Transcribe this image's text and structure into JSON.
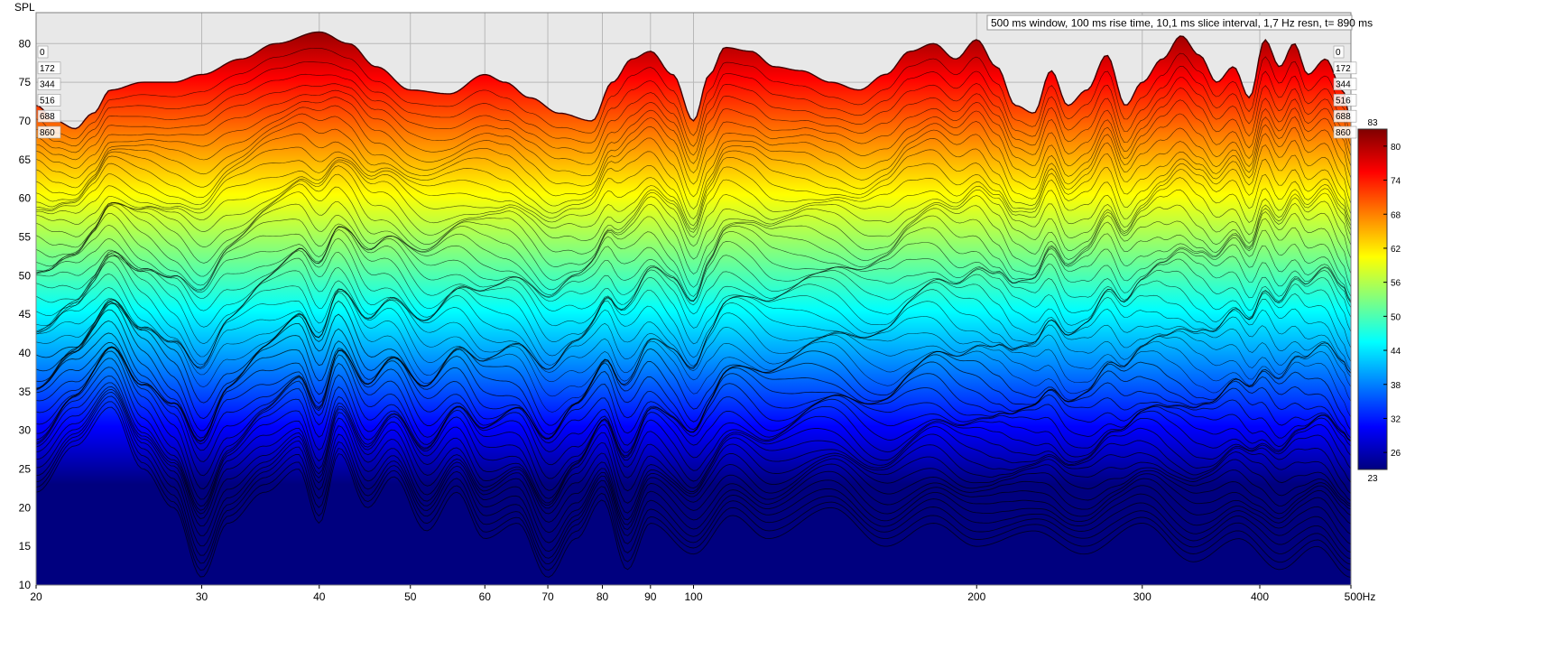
{
  "chart_data": {
    "type": "waterfall",
    "title": "",
    "ylabel": "SPL",
    "xunit": "Hz",
    "info": "500 ms window, 100 ms rise time, 10,1 ms slice interval, 1,7 Hz resn, t= 890 ms",
    "xlim": [
      20,
      500
    ],
    "ylim": [
      10,
      84
    ],
    "x_scale": "log",
    "grid": true,
    "x_ticks": [
      20,
      30,
      40,
      50,
      60,
      70,
      80,
      90,
      100,
      200,
      300,
      400,
      500
    ],
    "x_tick_labels": [
      "20",
      "30",
      "40",
      "50",
      "60",
      "70",
      "80",
      "90",
      "100",
      "200",
      "300",
      "400",
      "500Hz"
    ],
    "y_ticks": [
      10,
      15,
      20,
      25,
      30,
      35,
      40,
      45,
      50,
      55,
      60,
      65,
      70,
      75,
      80
    ],
    "time_slice_labels": [
      "0",
      "172",
      "344",
      "516",
      "688",
      "860"
    ],
    "colorbar": {
      "min": 23,
      "max": 83,
      "ticks": [
        26,
        32,
        38,
        44,
        50,
        56,
        62,
        68,
        74,
        80
      ],
      "stops": [
        "#00007f",
        "#0000ff",
        "#0080ff",
        "#00ffff",
        "#80ff80",
        "#ffff00",
        "#ff8000",
        "#ff0000",
        "#7f0000"
      ]
    },
    "series": [
      {
        "slice_ms": 0,
        "x": [
          20,
          21,
          22,
          23,
          24,
          26,
          28,
          30,
          33,
          36,
          40,
          43,
          46,
          50,
          55,
          60,
          63,
          67,
          72,
          78,
          82,
          86,
          90,
          95,
          100,
          104,
          108,
          115,
          122,
          130,
          140,
          150,
          160,
          170,
          180,
          190,
          200,
          210,
          220,
          230,
          240,
          250,
          262,
          275,
          288,
          300,
          315,
          330,
          345,
          360,
          375,
          390,
          405,
          420,
          435,
          450,
          470,
          490,
          500
        ],
        "y": [
          72,
          70,
          69,
          71,
          74,
          75,
          75,
          76,
          78,
          80,
          81.5,
          80,
          77,
          74,
          73.5,
          76,
          75,
          73,
          71,
          70,
          75,
          78,
          79,
          76,
          70,
          76,
          79.5,
          79,
          77,
          76.5,
          75,
          74,
          76,
          79,
          80,
          78,
          80.5,
          77,
          72,
          71,
          76.5,
          72,
          74,
          78.5,
          72,
          75,
          78,
          81,
          78.5,
          75,
          77,
          73,
          80.5,
          77,
          80,
          76,
          78,
          74,
          70
        ]
      },
      {
        "slice_ms": 890,
        "x": [
          20,
          22,
          24,
          26,
          28,
          30,
          32,
          35,
          38,
          40,
          42,
          45,
          48,
          52,
          56,
          60,
          65,
          70,
          75,
          80,
          85,
          90,
          100,
          110,
          120,
          140,
          160,
          180,
          200,
          230,
          260,
          300,
          340,
          380,
          420,
          460,
          500
        ],
        "y": [
          22,
          28,
          33,
          25,
          20,
          11,
          18,
          22,
          25,
          18,
          27,
          20,
          24,
          17,
          22,
          16,
          18,
          11,
          16,
          21,
          12,
          18,
          14,
          19,
          16,
          20,
          15,
          18,
          15,
          17,
          14,
          18,
          13,
          16,
          12,
          15,
          11
        ]
      }
    ]
  }
}
